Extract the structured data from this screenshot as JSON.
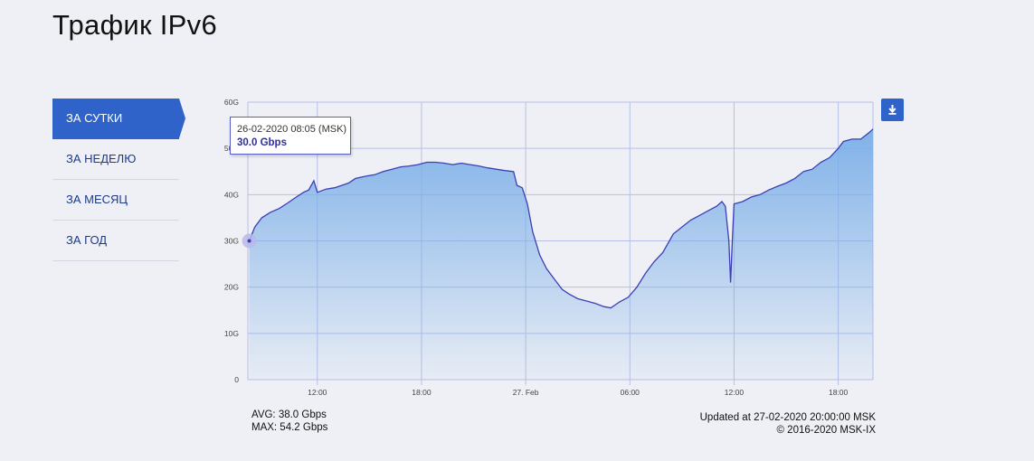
{
  "header": {
    "title": "Трафик IPv6"
  },
  "nav": {
    "items": [
      {
        "label": "ЗА СУТКИ",
        "active": true
      },
      {
        "label": "ЗА НЕДЕЛЮ",
        "active": false
      },
      {
        "label": "ЗА МЕСЯЦ",
        "active": false
      },
      {
        "label": "ЗА ГОД",
        "active": false
      }
    ]
  },
  "toolbar": {
    "download_icon": "download-icon"
  },
  "tooltip": {
    "date": "26-02-2020 08:05 (MSK)",
    "value": "30.0 Gbps"
  },
  "stats": {
    "avg": "AVG: 38.0 Gbps",
    "max": "MAX: 54.2 Gbps"
  },
  "meta": {
    "updated": "Updated at 27-02-2020 20:00:00 MSK",
    "copyright": "© 2016-2020 MSK-IX"
  },
  "colors": {
    "accent": "#2f63c9",
    "line": "#3b3fb4",
    "area_top": "#7aaee8",
    "grid": "#b8bfe6",
    "hover_marker": "#b9b9ea"
  },
  "chart_data": {
    "type": "area",
    "title": "Трафик IPv6",
    "xlabel": "",
    "ylabel": "",
    "x_unit": "hours since 26-02-2020 00:00 MSK",
    "x_ticks": [
      {
        "x": 12,
        "label": "12:00"
      },
      {
        "x": 18,
        "label": "18:00"
      },
      {
        "x": 24,
        "label": "27. Feb"
      },
      {
        "x": 30,
        "label": "06:00"
      },
      {
        "x": 36,
        "label": "12:00"
      },
      {
        "x": 42,
        "label": "18:00"
      }
    ],
    "y_ticks": [
      {
        "y": 0,
        "label": "0"
      },
      {
        "y": 10,
        "label": "10G"
      },
      {
        "y": 20,
        "label": "20G"
      },
      {
        "y": 30,
        "label": "30G"
      },
      {
        "y": 40,
        "label": "40G"
      },
      {
        "y": 50,
        "label": "50G"
      },
      {
        "y": 60,
        "label": "60G"
      }
    ],
    "xlim": [
      8,
      44
    ],
    "ylim": [
      0,
      60
    ],
    "grid": true,
    "series": [
      {
        "name": "",
        "unit": "Gbps",
        "points": [
          [
            8.08,
            30.0
          ],
          [
            8.4,
            33.0
          ],
          [
            8.8,
            35.0
          ],
          [
            9.3,
            36.2
          ],
          [
            9.8,
            37.0
          ],
          [
            10.3,
            38.2
          ],
          [
            10.8,
            39.5
          ],
          [
            11.2,
            40.5
          ],
          [
            11.5,
            41.0
          ],
          [
            11.8,
            43.0
          ],
          [
            12.0,
            40.5
          ],
          [
            12.5,
            41.2
          ],
          [
            13.0,
            41.5
          ],
          [
            13.4,
            42.0
          ],
          [
            13.8,
            42.5
          ],
          [
            14.2,
            43.5
          ],
          [
            14.8,
            44.0
          ],
          [
            15.3,
            44.3
          ],
          [
            15.8,
            45.0
          ],
          [
            16.3,
            45.5
          ],
          [
            16.8,
            46.0
          ],
          [
            17.3,
            46.2
          ],
          [
            17.8,
            46.5
          ],
          [
            18.3,
            47.0
          ],
          [
            18.8,
            47.0
          ],
          [
            19.3,
            46.8
          ],
          [
            19.8,
            46.5
          ],
          [
            20.3,
            46.8
          ],
          [
            20.8,
            46.5
          ],
          [
            21.3,
            46.2
          ],
          [
            21.8,
            45.8
          ],
          [
            22.3,
            45.5
          ],
          [
            22.8,
            45.2
          ],
          [
            23.3,
            45.0
          ],
          [
            23.5,
            42.0
          ],
          [
            23.8,
            41.5
          ],
          [
            24.1,
            38.0
          ],
          [
            24.4,
            32.0
          ],
          [
            24.8,
            27.0
          ],
          [
            25.2,
            24.0
          ],
          [
            25.7,
            21.5
          ],
          [
            26.1,
            19.5
          ],
          [
            26.5,
            18.5
          ],
          [
            27.0,
            17.5
          ],
          [
            27.5,
            17.0
          ],
          [
            28.0,
            16.5
          ],
          [
            28.5,
            15.8
          ],
          [
            28.9,
            15.5
          ],
          [
            29.4,
            16.8
          ],
          [
            29.9,
            17.8
          ],
          [
            30.4,
            20.0
          ],
          [
            30.9,
            23.0
          ],
          [
            31.4,
            25.5
          ],
          [
            31.9,
            27.5
          ],
          [
            32.5,
            31.5
          ],
          [
            33.0,
            33.0
          ],
          [
            33.5,
            34.5
          ],
          [
            34.0,
            35.5
          ],
          [
            34.5,
            36.5
          ],
          [
            35.0,
            37.5
          ],
          [
            35.3,
            38.5
          ],
          [
            35.5,
            37.5
          ],
          [
            35.7,
            30.0
          ],
          [
            35.8,
            21.0
          ],
          [
            35.9,
            30.0
          ],
          [
            36.0,
            38.0
          ],
          [
            36.5,
            38.5
          ],
          [
            37.0,
            39.5
          ],
          [
            37.5,
            40.0
          ],
          [
            38.0,
            41.0
          ],
          [
            38.5,
            41.8
          ],
          [
            39.0,
            42.5
          ],
          [
            39.5,
            43.5
          ],
          [
            40.0,
            45.0
          ],
          [
            40.5,
            45.5
          ],
          [
            41.0,
            47.0
          ],
          [
            41.5,
            48.0
          ],
          [
            42.0,
            50.0
          ],
          [
            42.3,
            51.5
          ],
          [
            42.8,
            52.0
          ],
          [
            43.3,
            52.0
          ],
          [
            43.8,
            53.5
          ],
          [
            44.0,
            54.2
          ]
        ]
      }
    ],
    "annotations": [
      {
        "type": "hover_point",
        "x": 8.08,
        "y": 30.0
      }
    ]
  }
}
